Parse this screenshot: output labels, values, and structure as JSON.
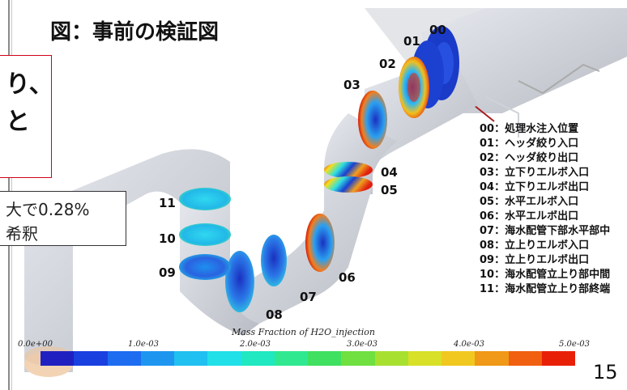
{
  "figure": {
    "title": "図：事前の検証図"
  },
  "callouts": {
    "red_line1": "り、",
    "red_line2": "と",
    "white_line1": "大で0.28%",
    "white_line2": "希釈"
  },
  "plot_labels": [
    "00",
    "01",
    "02",
    "03",
    "04",
    "05",
    "06",
    "07",
    "08",
    "09",
    "10",
    "11"
  ],
  "legend": [
    "00：処理水注入位置",
    "01：ヘッダ絞り入口",
    "02：ヘッダ絞り出口",
    "03：立下りエルボ入口",
    "04：立下りエルボ出口",
    "05：水平エルボ入口",
    "06：水平エルボ出口",
    "07：海水配管下部水平部中",
    "08：立上りエルボ入口",
    "09：立上りエルボ出口",
    "10：海水配管立上り部中間",
    "11：海水配管立上り部終端"
  ],
  "colorbar": {
    "title": "Mass Fraction of H2O_injection",
    "ticks": [
      "0.0e+00",
      "1.0e-03",
      "2.0e-03",
      "3.0e-03",
      "4.0e-03",
      "5.0e-03"
    ],
    "colors": [
      "#2020c0",
      "#1a40e0",
      "#1e6cf0",
      "#1e96f0",
      "#20c0f0",
      "#22e0e8",
      "#20e8c0",
      "#30e890",
      "#40e060",
      "#70e040",
      "#a8e030",
      "#d8e028",
      "#f0c820",
      "#f09818",
      "#f06010",
      "#e82008"
    ]
  },
  "page": {
    "number": "15"
  }
}
